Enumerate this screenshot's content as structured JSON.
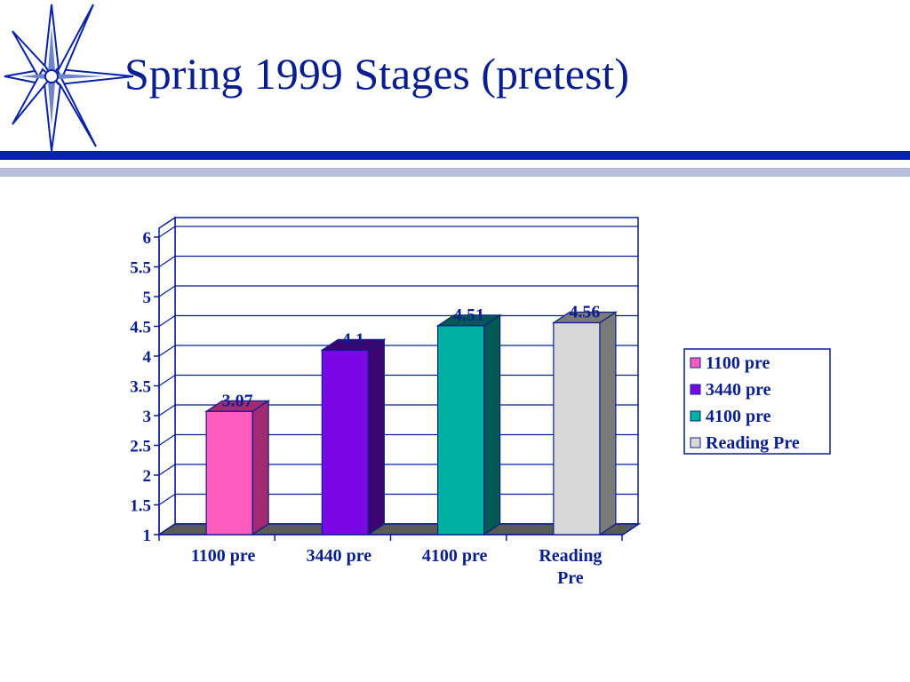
{
  "slide": {
    "title": "Spring 1999 Stages (pretest)",
    "colors": {
      "title": "#0a1f8f",
      "rule_dark": "#0a23a6",
      "rule_light": "#b7bfdd"
    },
    "decoration_icon": "starburst-icon"
  },
  "chart_data": {
    "type": "bar",
    "style": "3d-column",
    "categories": [
      "1100 pre",
      "3440 pre",
      "4100 pre",
      "Reading Pre"
    ],
    "category_labels": [
      [
        "1100 pre"
      ],
      [
        "3440 pre"
      ],
      [
        "4100 pre"
      ],
      [
        "Reading",
        "Pre"
      ]
    ],
    "values": [
      3.07,
      4.1,
      4.51,
      4.56
    ],
    "data_labels": [
      "3.07",
      "4.1",
      "4.51",
      "4.56"
    ],
    "colors": [
      "#ff5cbe",
      "#7a08e6",
      "#00b3a1",
      "#d9d9d9"
    ],
    "side_colors": [
      "#a12a72",
      "#3d0570",
      "#005a52",
      "#7a7a7a"
    ],
    "series": [
      {
        "name": "1100 pre",
        "color": "#ff5cbe"
      },
      {
        "name": "3440 pre",
        "color": "#7a08e6"
      },
      {
        "name": "4100 pre",
        "color": "#00b3a1"
      },
      {
        "name": "Reading Pre",
        "color": "#d9d9d9"
      }
    ],
    "ylim": [
      1,
      6
    ],
    "yticks": [
      "1",
      "1.5",
      "2",
      "2.5",
      "3",
      "3.5",
      "4",
      "4.5",
      "5",
      "5.5",
      "6"
    ],
    "grid": true,
    "legend": "right",
    "title": "",
    "xlabel": "",
    "ylabel": ""
  }
}
